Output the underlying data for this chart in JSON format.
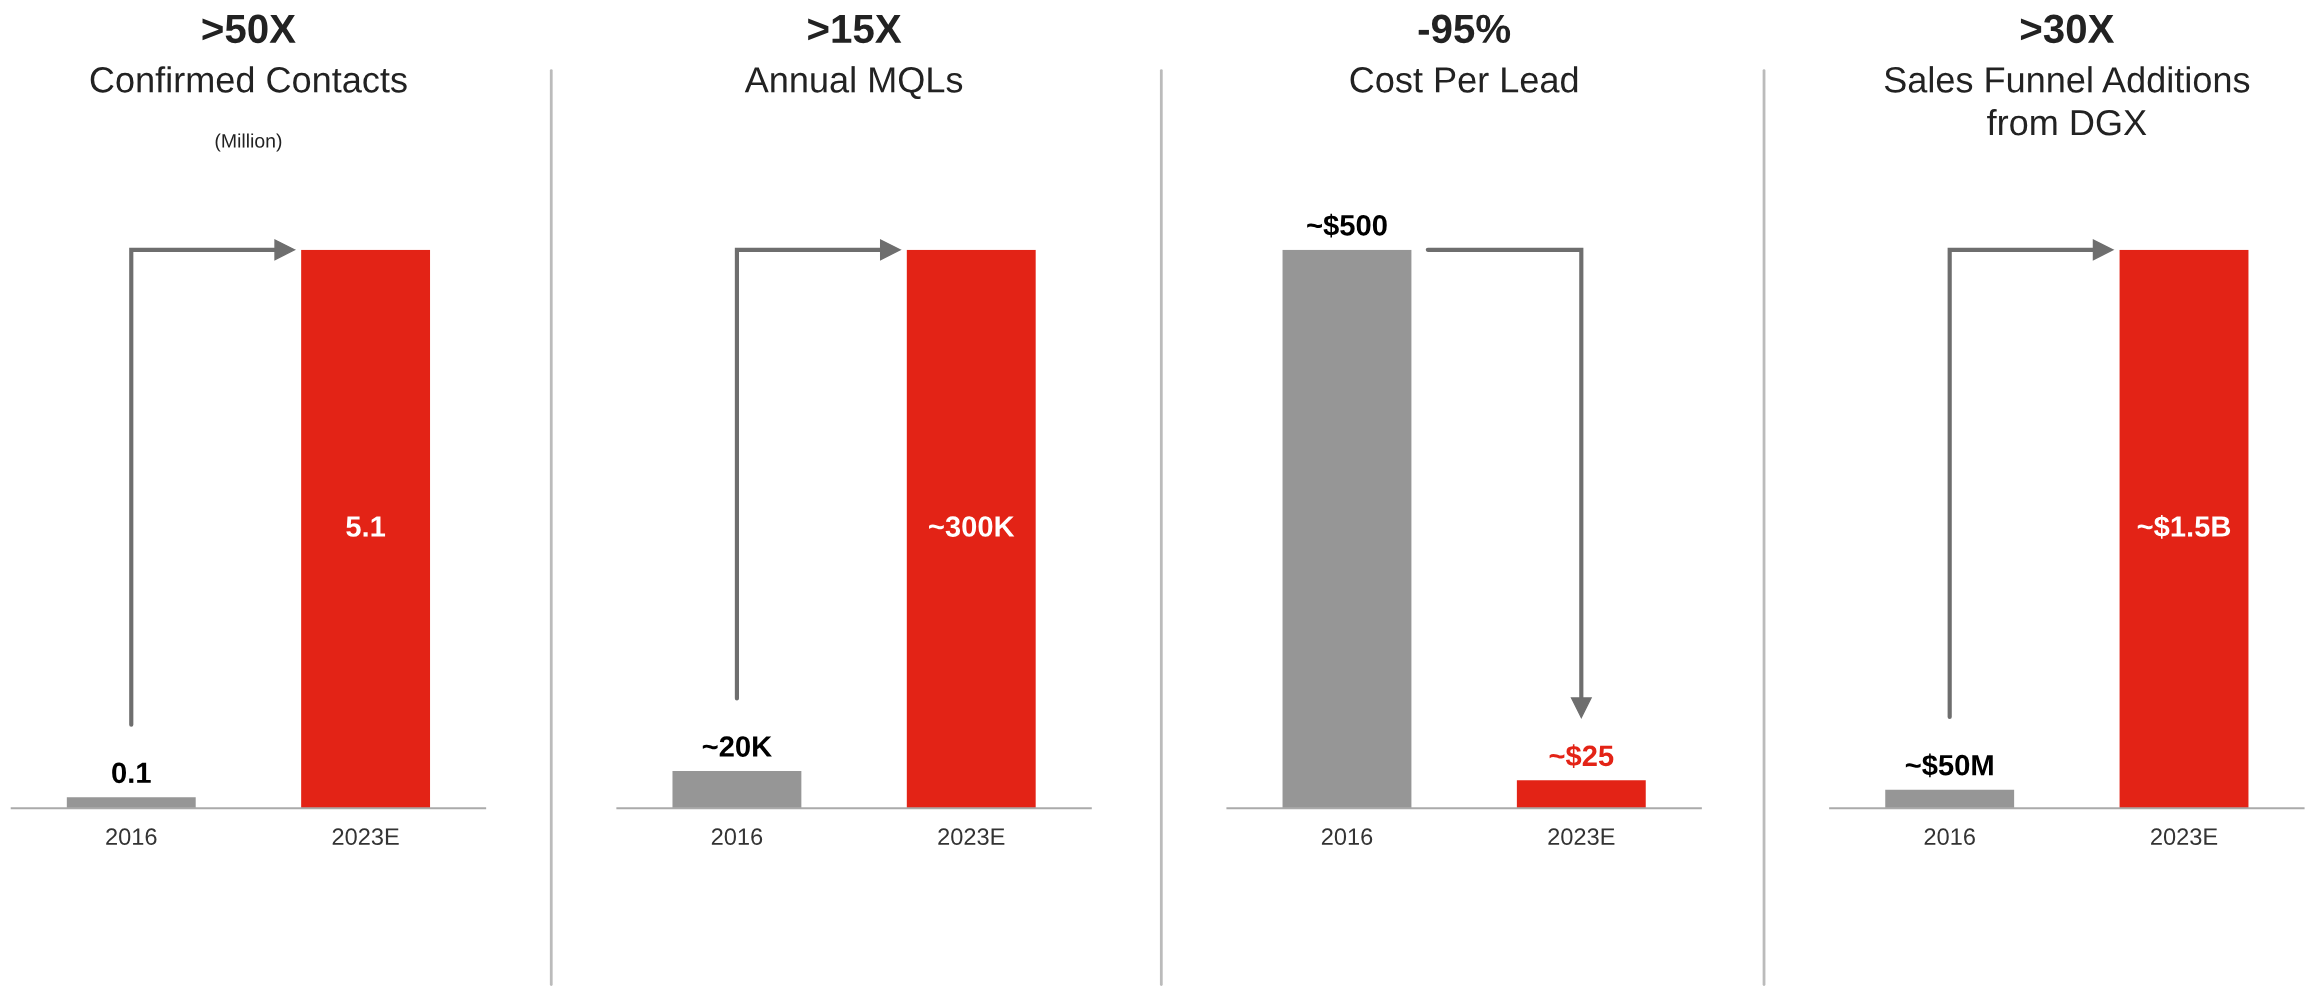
{
  "chart_data": [
    {
      "type": "bar",
      "title": ">50X",
      "subtitle": "Confirmed Contacts",
      "annotations": [
        "(Million)"
      ],
      "categories": [
        "2016",
        "2023E"
      ],
      "values": [
        0.1,
        5.1
      ],
      "colors": [
        "#969696",
        "#e32316"
      ],
      "data_labels": true
    },
    {
      "type": "bar",
      "title": ">15X",
      "subtitle": "Annual MQLs",
      "categories": [
        "2016",
        "2023E"
      ],
      "values": [
        20000,
        300000
      ],
      "value_labels": [
        "~20K",
        "~300K"
      ],
      "colors": [
        "#969696",
        "#e32316"
      ]
    },
    {
      "type": "bar",
      "title": "-95%",
      "subtitle": "Cost Per Lead",
      "categories": [
        "2016",
        "2023E"
      ],
      "values": [
        500,
        25
      ],
      "value_labels": [
        "~$500",
        "~$25"
      ],
      "colors": [
        "#969696",
        "#e32316"
      ]
    },
    {
      "type": "bar",
      "title": ">30X",
      "subtitle": "Sales Funnel Additions\nfrom DGX",
      "categories": [
        "2016",
        "2023E"
      ],
      "values": [
        50000000,
        1500000000
      ],
      "value_labels": [
        "~$50M",
        "~$1.5B"
      ],
      "colors": [
        "#969696",
        "#e32316"
      ]
    }
  ]
}
